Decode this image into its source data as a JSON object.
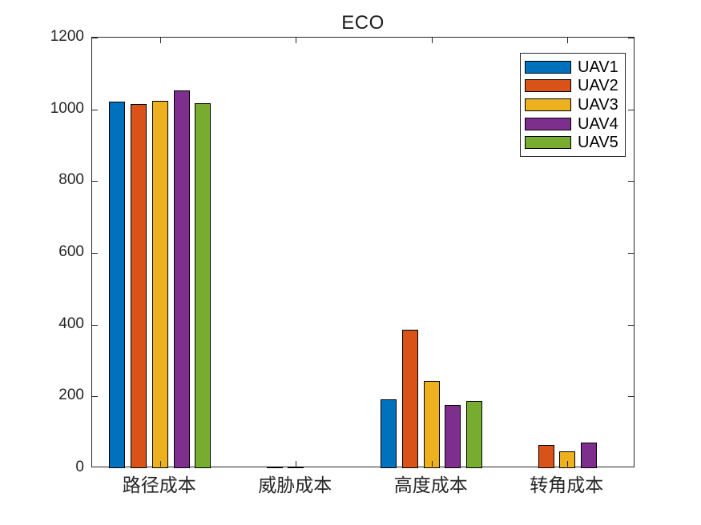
{
  "figure": {
    "background": "#ffffff",
    "axis_color": "#262626"
  },
  "chart_data": {
    "type": "bar",
    "title": "ECO",
    "categories": [
      "路径成本",
      "威胁成本",
      "高度成本",
      "转角成本"
    ],
    "series": [
      {
        "name": "UAV1",
        "color": "#0072BD",
        "values": [
          1022,
          0,
          193,
          0
        ]
      },
      {
        "name": "UAV2",
        "color": "#D95319",
        "values": [
          1015,
          4,
          385,
          65
        ]
      },
      {
        "name": "UAV3",
        "color": "#EDB120",
        "values": [
          1025,
          5,
          243,
          48
        ]
      },
      {
        "name": "UAV4",
        "color": "#7E2F8E",
        "values": [
          1052,
          0,
          176,
          71
        ]
      },
      {
        "name": "UAV5",
        "color": "#77AC30",
        "values": [
          1018,
          0,
          188,
          0
        ]
      }
    ],
    "xlabel": "",
    "ylabel": "",
    "ylim": [
      0,
      1200
    ],
    "yticks": [
      0,
      200,
      400,
      600,
      800,
      1000,
      1200
    ],
    "grid": false,
    "legend_position": "top-right",
    "bar_edge_color": "#000000"
  }
}
